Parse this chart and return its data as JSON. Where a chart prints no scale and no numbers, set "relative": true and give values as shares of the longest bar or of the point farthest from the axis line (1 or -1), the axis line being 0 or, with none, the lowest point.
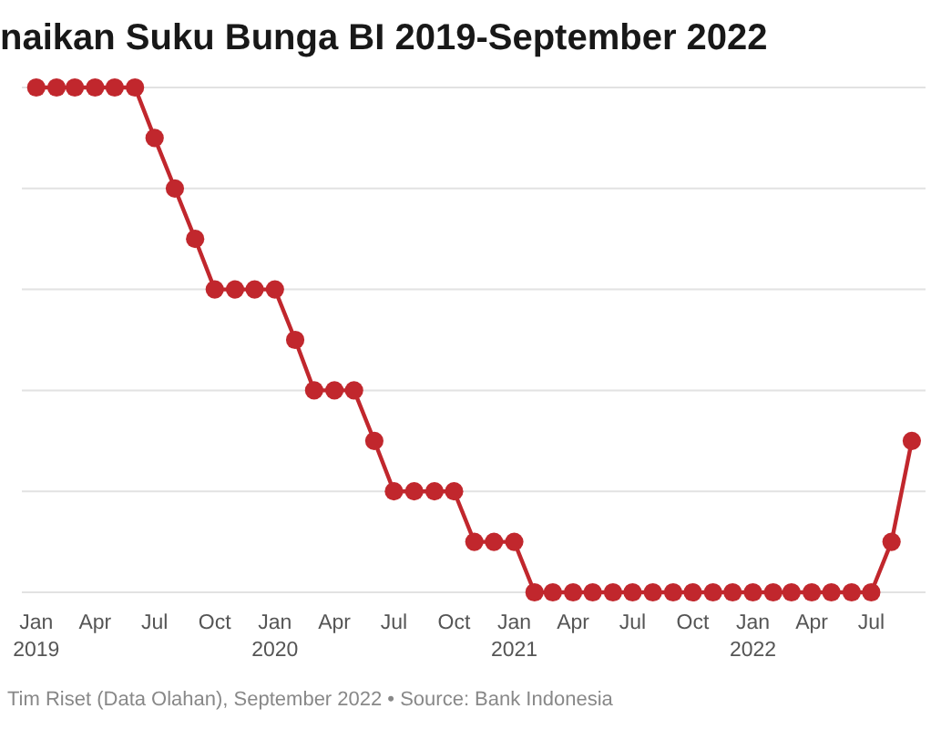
{
  "chart_data": {
    "type": "line",
    "title": "naikan Suku Bunga BI 2019-September 2022",
    "annotations": [
      "Tim Riset (Data Olahan), September 2022 • Source: Bank Indonesia"
    ],
    "x": [
      "2019-01",
      "2019-02",
      "2019-03",
      "2019-04",
      "2019-05",
      "2019-06",
      "2019-07",
      "2019-08",
      "2019-09",
      "2019-10",
      "2019-11",
      "2019-12",
      "2020-01",
      "2020-02",
      "2020-03",
      "2020-04",
      "2020-05",
      "2020-06",
      "2020-07",
      "2020-08",
      "2020-09",
      "2020-10",
      "2020-11",
      "2020-12",
      "2021-01",
      "2021-02",
      "2021-03",
      "2021-04",
      "2021-05",
      "2021-06",
      "2021-07",
      "2021-08",
      "2021-09",
      "2021-10",
      "2021-11",
      "2021-12",
      "2022-01",
      "2022-02",
      "2022-03",
      "2022-04",
      "2022-05",
      "2022-06",
      "2022-07",
      "2022-08",
      "2022-09"
    ],
    "series": [
      {
        "color": "#c1272d",
        "values": [
          1,
          1,
          1,
          1,
          1,
          1,
          0.9,
          0.8,
          0.7,
          0.6,
          0.6,
          0.6,
          0.6,
          0.5,
          0.4,
          0.4,
          0.4,
          0.3,
          0.2,
          0.2,
          0.2,
          0.2,
          0.1,
          0.1,
          0.1,
          0,
          0,
          0,
          0,
          0,
          0,
          0,
          0,
          0,
          0,
          0,
          0,
          0,
          0,
          0,
          0,
          0,
          0,
          0.1,
          0.3
        ]
      }
    ],
    "relative": true,
    "xlim": [
      "2018-12-10",
      "2022-09-22"
    ],
    "xticks": [
      {
        "value": "2019-01",
        "label": "Jan 2019"
      },
      {
        "value": "2019-04",
        "label": "Apr"
      },
      {
        "value": "2019-07",
        "label": "Jul"
      },
      {
        "value": "2019-10",
        "label": "Oct"
      },
      {
        "value": "2020-01",
        "label": "Jan 2020"
      },
      {
        "value": "2020-04",
        "label": "Apr"
      },
      {
        "value": "2020-07",
        "label": "Jul"
      },
      {
        "value": "2020-10",
        "label": "Oct"
      },
      {
        "value": "2021-01",
        "label": "Jan 2021"
      },
      {
        "value": "2021-04",
        "label": "Apr"
      },
      {
        "value": "2021-07",
        "label": "Jul"
      },
      {
        "value": "2021-10",
        "label": "Oct"
      },
      {
        "value": "2022-01",
        "label": "Jan 2022"
      },
      {
        "value": "2022-04",
        "label": "Apr"
      },
      {
        "value": "2022-07",
        "label": "Jul"
      }
    ],
    "grid": "y",
    "marker": "circle",
    "line_style": "solid"
  }
}
